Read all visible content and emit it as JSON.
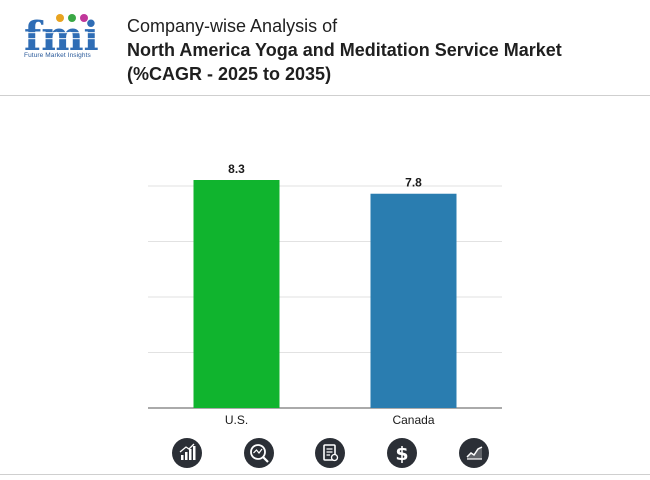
{
  "header": {
    "logo_text": "fmi",
    "logo_subtitle": "Future Market Insights",
    "title_line1": "Company-wise Analysis of",
    "title_line2": "North America Yoga and Meditation Service Market",
    "title_line3": "(%CAGR - 2025 to 2035)"
  },
  "chart_data": {
    "type": "bar",
    "categories": [
      "U.S.",
      "Canada"
    ],
    "values": [
      8.3,
      7.8
    ],
    "ylim": [
      0,
      8.3
    ],
    "grid": true,
    "colors": [
      "#10b42e",
      "#2a7db0"
    ],
    "value_labels": [
      "8.3",
      "7.8"
    ]
  },
  "footer": {
    "icons": [
      "bar-growth-icon",
      "magnifier-chart-icon",
      "report-document-icon",
      "dollar-icon",
      "trend-line-icon"
    ]
  }
}
